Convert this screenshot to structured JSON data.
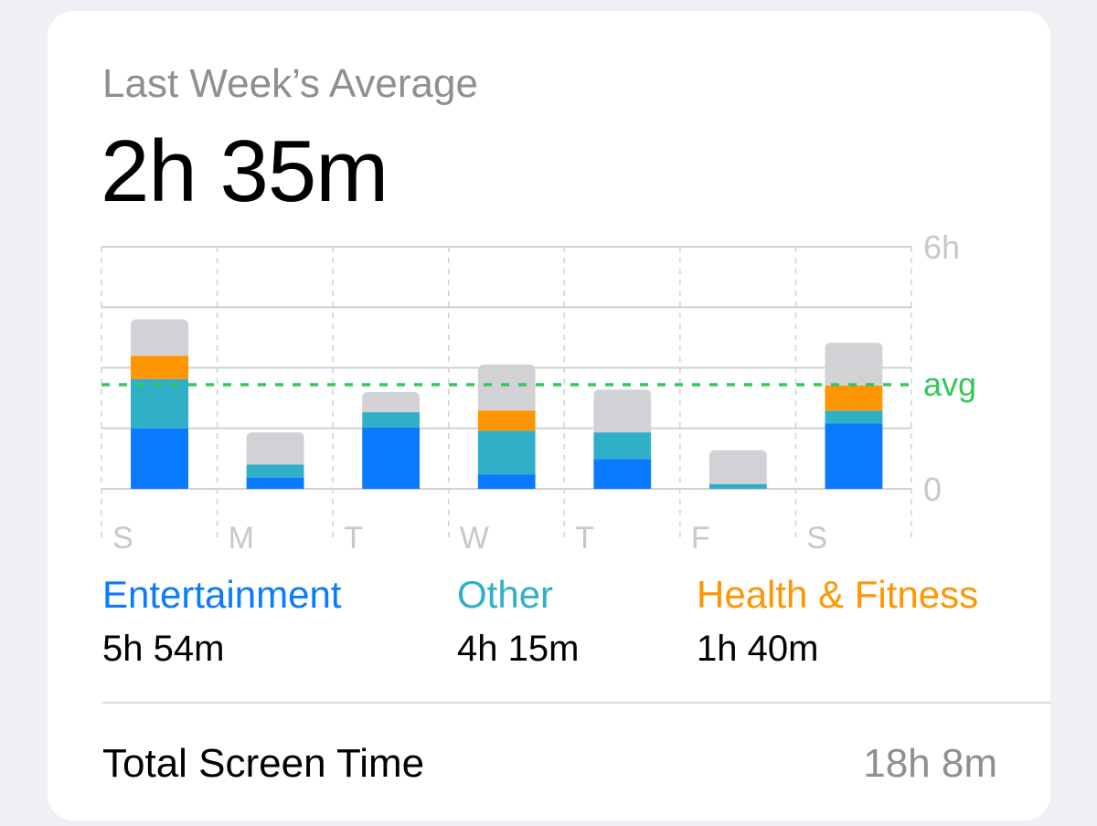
{
  "header": {
    "title": "Last Week’s Average",
    "value": "2h 35m"
  },
  "colors": {
    "entertainment": "#0a7aff",
    "other": "#30b0c7",
    "health_fitness": "#ff9500",
    "remaining": "#d1d1d6",
    "avg_line": "#34c759",
    "grid": "#d1d1d6",
    "axis_label": "#c7c7cc"
  },
  "chart_data": {
    "type": "bar",
    "stacked": true,
    "categories": [
      "S",
      "M",
      "T",
      "W",
      "T",
      "F",
      "S"
    ],
    "ylim": [
      0,
      6
    ],
    "y_unit": "hours",
    "y_tick_labels": [
      "0",
      "6h"
    ],
    "average_label": "avg",
    "average_value": 2.58,
    "series": [
      {
        "name": "Entertainment",
        "color": "#0a7aff",
        "values": [
          1.5,
          0.28,
          1.52,
          0.36,
          0.74,
          0.0,
          1.62
        ]
      },
      {
        "name": "Other",
        "color": "#30b0c7",
        "values": [
          1.22,
          0.32,
          0.38,
          1.08,
          0.66,
          0.12,
          0.32
        ]
      },
      {
        "name": "Health & Fitness",
        "color": "#ff9500",
        "values": [
          0.58,
          0.0,
          0.0,
          0.5,
          0.0,
          0.0,
          0.62
        ]
      },
      {
        "color": "#d1d1d6",
        "values": [
          0.9,
          0.8,
          0.5,
          1.14,
          1.06,
          0.84,
          1.06
        ]
      }
    ],
    "grid": true
  },
  "legend": [
    {
      "name": "Entertainment",
      "value": "5h 54m",
      "color": "#0a7aff"
    },
    {
      "name": "Other",
      "value": "4h 15m",
      "color": "#30b0c7"
    },
    {
      "name": "Health & Fitness",
      "value": "1h 40m",
      "color": "#ff9500"
    }
  ],
  "footer": {
    "label": "Total Screen Time",
    "value": "18h 8m"
  }
}
